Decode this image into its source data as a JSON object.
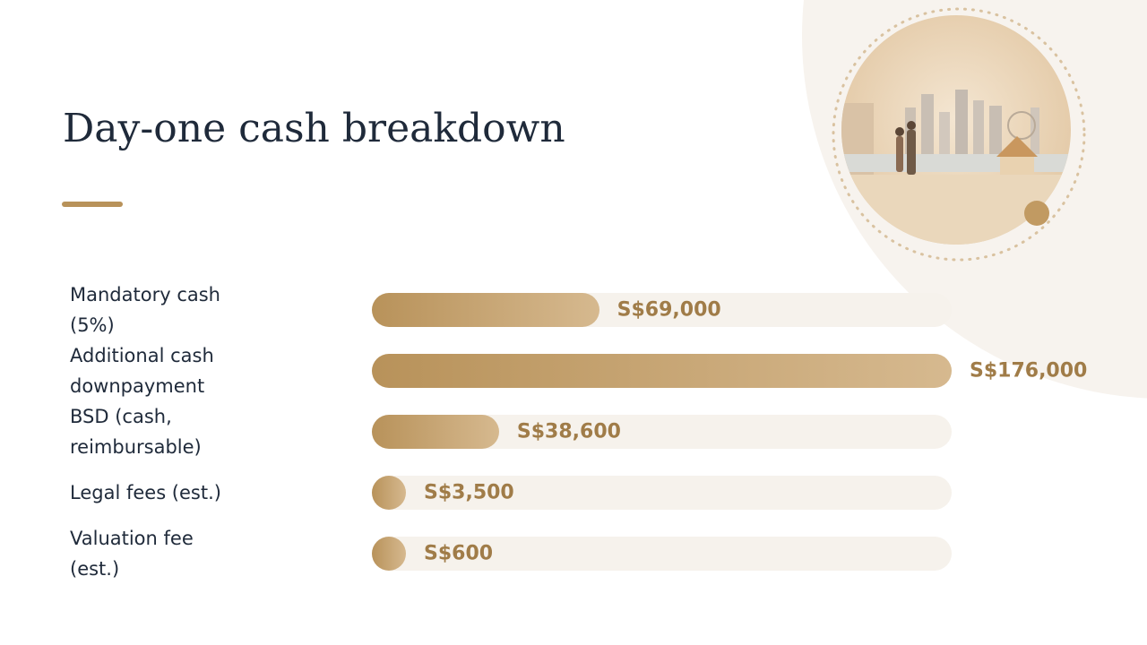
{
  "chart_data": {
    "type": "bar",
    "orientation": "horizontal",
    "title": "Day-one cash breakdown",
    "categories": [
      "Mandatory cash (5%)",
      "Additional cash downpayment",
      "BSD (cash, reimbursable)",
      "Legal fees (est.)",
      "Valuation fee (est.)"
    ],
    "values": [
      69000,
      176000,
      38600,
      3500,
      600
    ],
    "value_labels": [
      "S$69,000",
      "S$176,000",
      "S$38,600",
      "S$3,500",
      "S$600"
    ],
    "color": "#b8925a"
  }
}
